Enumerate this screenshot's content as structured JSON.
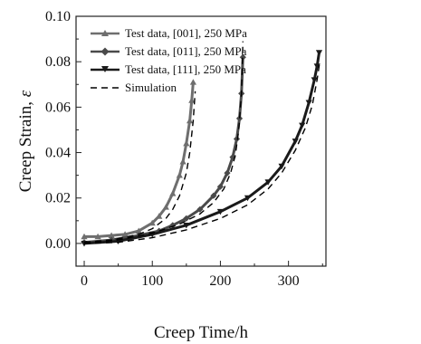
{
  "chart_data": {
    "type": "line",
    "xlabel": "Creep Time/h",
    "ylabel_text": "Creep Strain, ",
    "ylabel_symbol": "ε",
    "xlim": [
      -12,
      355
    ],
    "ylim": [
      -0.01,
      0.1
    ],
    "xticks": [
      0,
      100,
      200,
      300
    ],
    "yticks": [
      0.0,
      0.02,
      0.04,
      0.06,
      0.08,
      0.1
    ],
    "ytick_labels": [
      "0.00",
      "0.02",
      "0.04",
      "0.06",
      "0.08",
      "0.10"
    ],
    "grid": false,
    "legend_position": "top-left",
    "series": [
      {
        "name": "Test data, [001], 250 MPa",
        "marker": "triangle-up",
        "color": "#6e6e6e",
        "x": [
          0,
          20,
          40,
          60,
          80,
          100,
          110,
          120,
          130,
          140,
          145,
          150,
          155,
          158,
          160
        ],
        "y": [
          0.003,
          0.003,
          0.0035,
          0.004,
          0.0055,
          0.009,
          0.012,
          0.016,
          0.022,
          0.03,
          0.036,
          0.044,
          0.054,
          0.063,
          0.071
        ]
      },
      {
        "name": "Test data, [011], 250 MPa",
        "marker": "diamond",
        "color": "#4a4a4a",
        "x": [
          0,
          40,
          80,
          110,
          130,
          150,
          170,
          190,
          200,
          210,
          218,
          224,
          228,
          231,
          233
        ],
        "y": [
          0.0005,
          0.0015,
          0.0035,
          0.0055,
          0.008,
          0.011,
          0.015,
          0.021,
          0.025,
          0.031,
          0.038,
          0.046,
          0.055,
          0.066,
          0.082
        ]
      },
      {
        "name": "Test data, [111], 250 MPa",
        "marker": "triangle-down",
        "color": "#1a1a1a",
        "x": [
          0,
          50,
          100,
          150,
          200,
          240,
          270,
          290,
          310,
          320,
          330,
          338,
          342,
          345
        ],
        "y": [
          0.0,
          0.001,
          0.004,
          0.008,
          0.014,
          0.02,
          0.027,
          0.034,
          0.045,
          0.052,
          0.062,
          0.072,
          0.078,
          0.084
        ]
      },
      {
        "name": "Simulation",
        "dashed": true,
        "color": "#000000",
        "curves": [
          {
            "x": [
              0,
              40,
              80,
              100,
              120,
              130,
              140,
              150,
              155,
              160,
              163
            ],
            "y": [
              0.0005,
              0.0015,
              0.004,
              0.0065,
              0.011,
              0.015,
              0.021,
              0.031,
              0.04,
              0.054,
              0.067
            ]
          },
          {
            "x": [
              0,
              50,
              100,
              140,
              170,
              190,
              205,
              215,
              222,
              227,
              231,
              233
            ],
            "y": [
              0.0,
              0.0015,
              0.0045,
              0.0085,
              0.013,
              0.018,
              0.024,
              0.031,
              0.039,
              0.05,
              0.066,
              0.089
            ]
          },
          {
            "x": [
              0,
              50,
              100,
              150,
              200,
              240,
              270,
              290,
              310,
              325,
              335,
              342,
              346
            ],
            "y": [
              0.0,
              0.0005,
              0.0025,
              0.006,
              0.011,
              0.017,
              0.024,
              0.031,
              0.041,
              0.051,
              0.061,
              0.072,
              0.08
            ]
          }
        ]
      }
    ]
  }
}
